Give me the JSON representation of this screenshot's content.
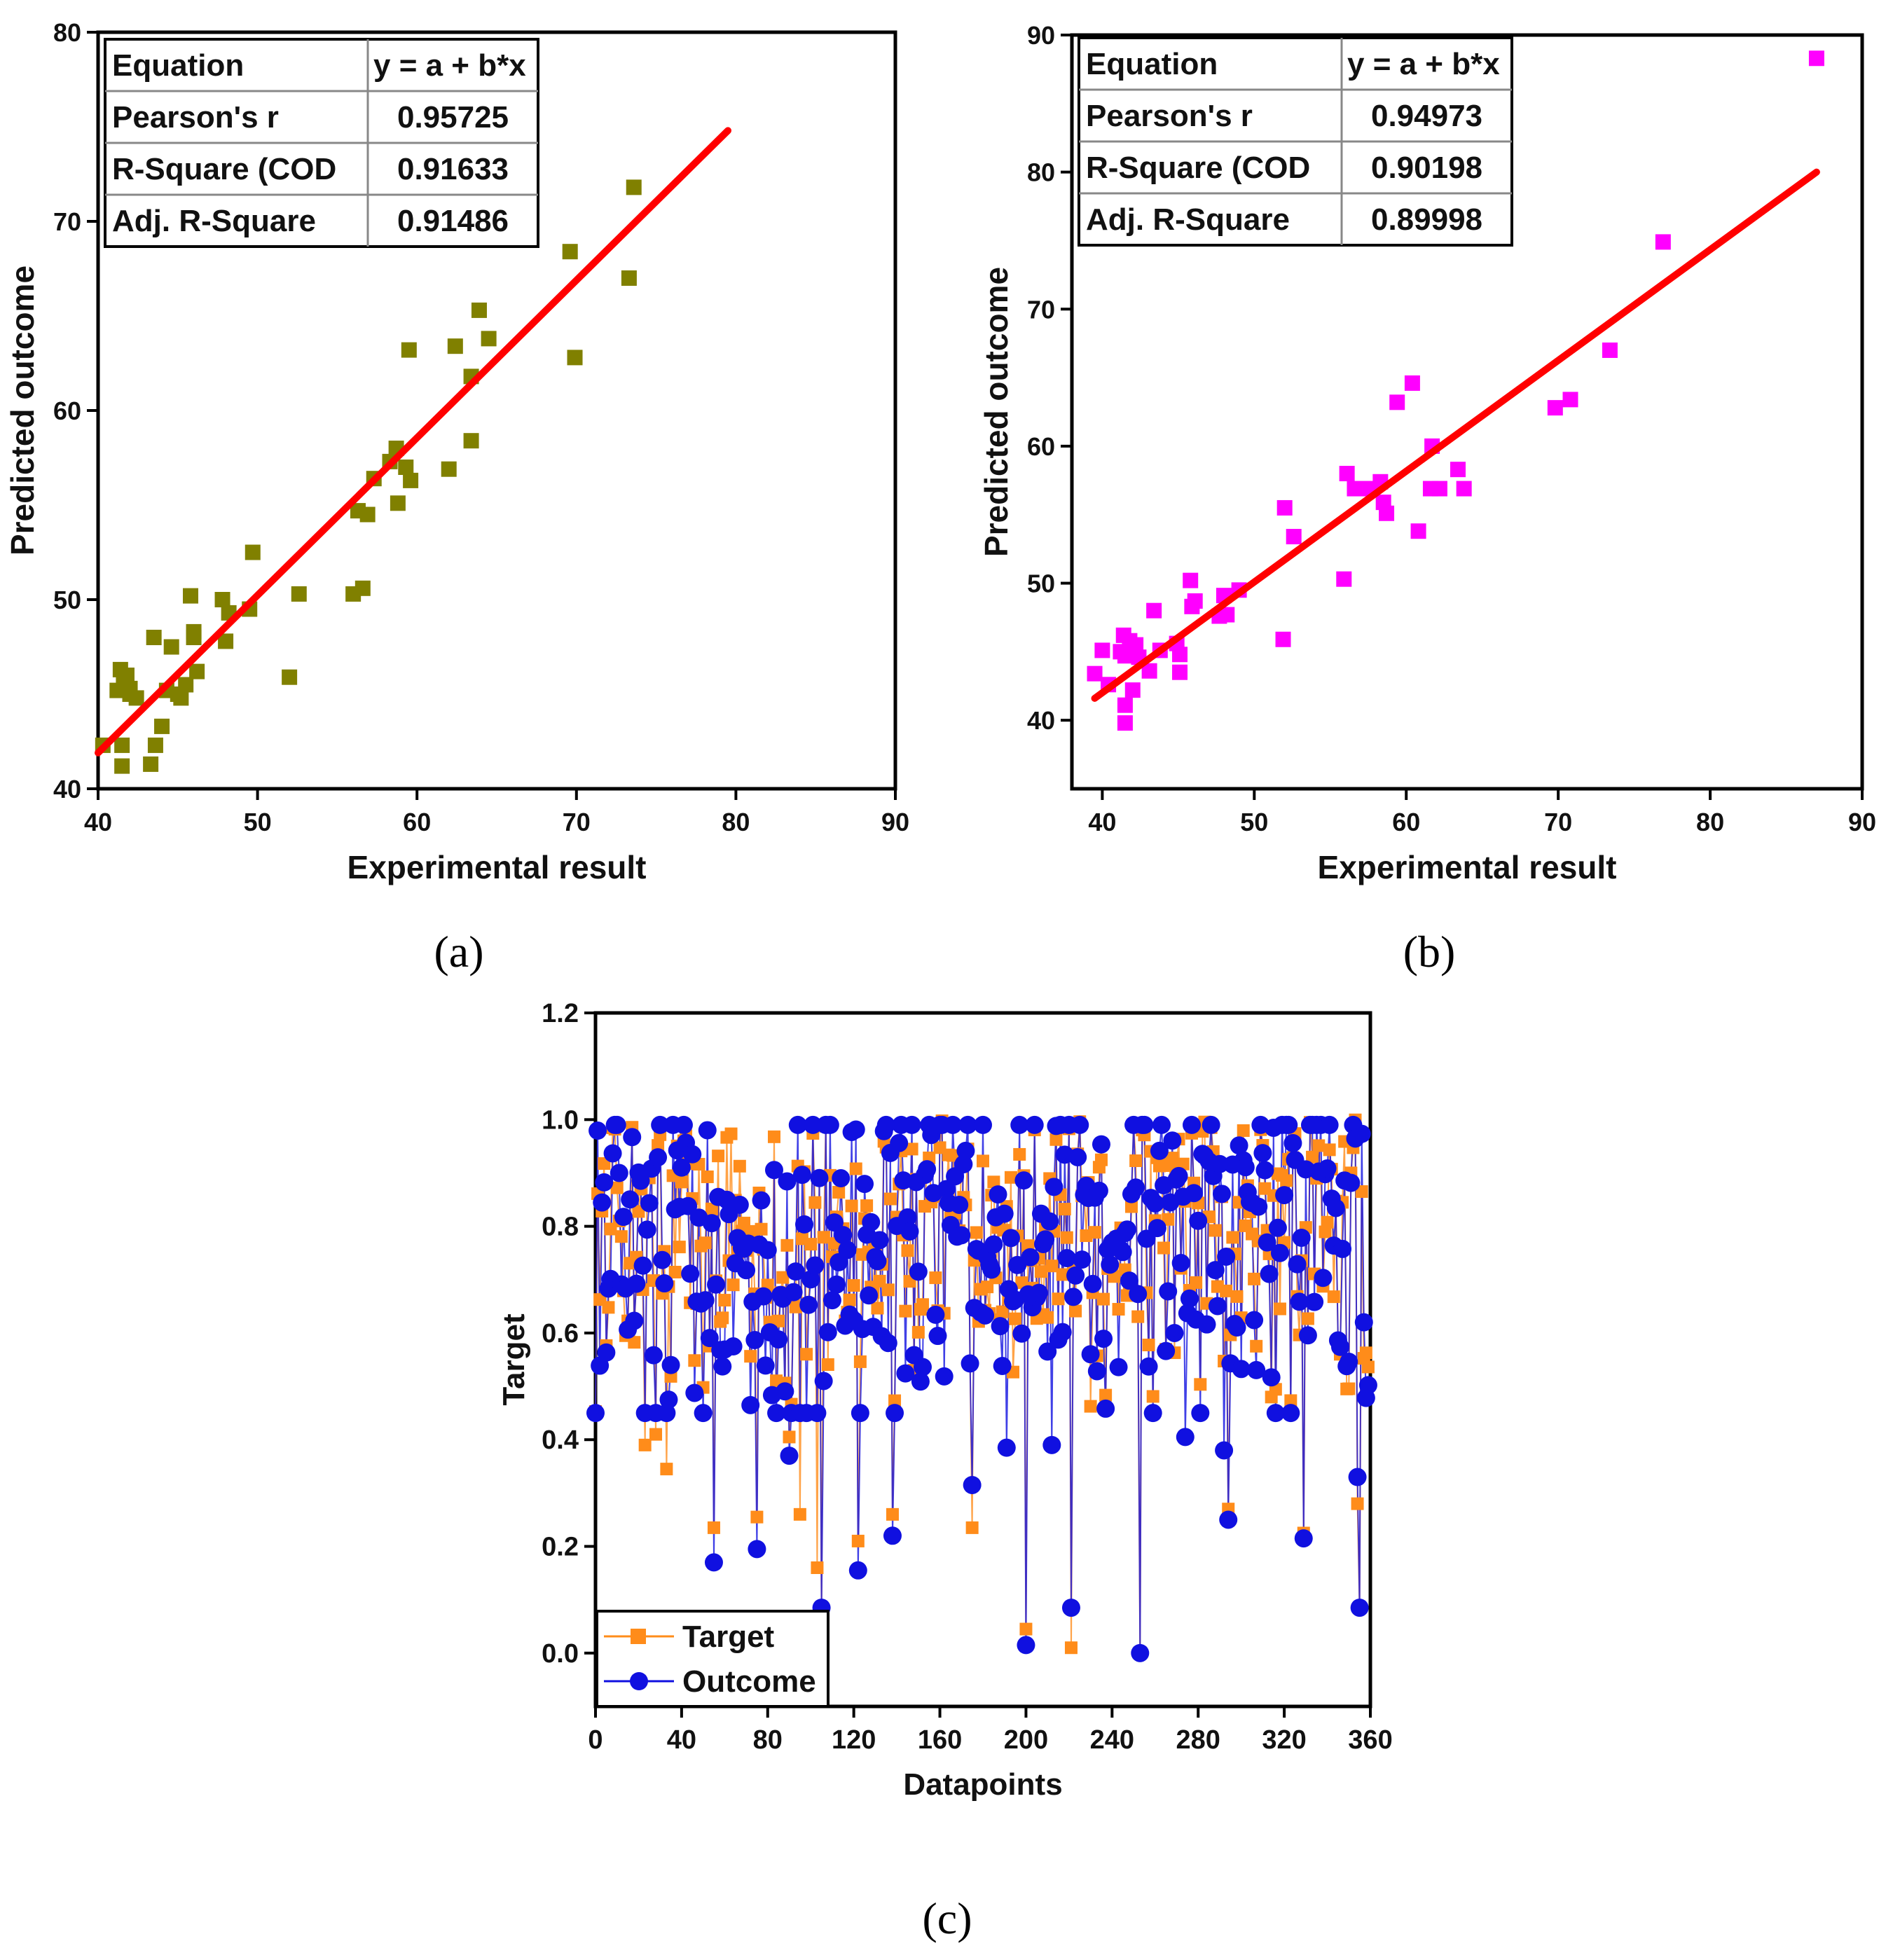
{
  "chart_data": [
    {
      "id": "a",
      "type": "scatter",
      "panel_label": "(a)",
      "xlabel": "Experimental result",
      "ylabel": "Predicted outcome",
      "xlim": [
        40,
        90
      ],
      "ylim": [
        40,
        80
      ],
      "xticks": [
        40,
        50,
        60,
        70,
        80,
        90
      ],
      "yticks": [
        40,
        50,
        60,
        70,
        80
      ],
      "marker_color": "#808000",
      "fit_color": "#ff0000",
      "fit_line": {
        "x": [
          40,
          79.5
        ],
        "y": [
          41.9,
          74.8
        ]
      },
      "stats_table": [
        {
          "label": "Equation",
          "value": "y = a + b*x"
        },
        {
          "label": "Pearson's r",
          "value": "0.95725"
        },
        {
          "label": "R-Square (COD",
          "value": "0.91633"
        },
        {
          "label": "Adj. R-Square",
          "value": "0.91486"
        }
      ],
      "points": [
        [
          40.3,
          42.3
        ],
        [
          41.2,
          45.2
        ],
        [
          41.4,
          46.3
        ],
        [
          41.6,
          45.6
        ],
        [
          41.8,
          46.0
        ],
        [
          41.5,
          42.3
        ],
        [
          41.5,
          41.2
        ],
        [
          42.0,
          45.0
        ],
        [
          42.4,
          44.8
        ],
        [
          42.0,
          45.3
        ],
        [
          43.3,
          41.3
        ],
        [
          43.6,
          42.3
        ],
        [
          43.5,
          48.0
        ],
        [
          44.0,
          43.3
        ],
        [
          44.3,
          45.2
        ],
        [
          44.6,
          47.5
        ],
        [
          45.0,
          45.0
        ],
        [
          45.2,
          44.8
        ],
        [
          45.5,
          45.5
        ],
        [
          45.8,
          50.2
        ],
        [
          46.0,
          48.3
        ],
        [
          46.2,
          46.2
        ],
        [
          46.0,
          48.0
        ],
        [
          47.8,
          50.0
        ],
        [
          48.0,
          47.8
        ],
        [
          48.2,
          49.3
        ],
        [
          49.5,
          49.5
        ],
        [
          49.7,
          52.5
        ],
        [
          52.0,
          45.9
        ],
        [
          52.6,
          50.3
        ],
        [
          56.0,
          50.3
        ],
        [
          56.3,
          54.7
        ],
        [
          56.6,
          50.6
        ],
        [
          56.9,
          54.5
        ],
        [
          57.3,
          56.4
        ],
        [
          58.3,
          57.3
        ],
        [
          58.7,
          58.0
        ],
        [
          58.8,
          55.1
        ],
        [
          59.3,
          57.0
        ],
        [
          59.6,
          56.3
        ],
        [
          59.5,
          63.2
        ],
        [
          62.0,
          56.9
        ],
        [
          62.4,
          63.4
        ],
        [
          63.4,
          58.4
        ],
        [
          63.4,
          61.8
        ],
        [
          63.9,
          65.3
        ],
        [
          64.5,
          63.8
        ],
        [
          69.6,
          68.4
        ],
        [
          69.9,
          62.8
        ],
        [
          73.3,
          67.0
        ],
        [
          73.6,
          71.8
        ]
      ]
    },
    {
      "id": "b",
      "type": "scatter",
      "panel_label": "(b)",
      "xlabel": "Experimental result",
      "ylabel": "Predicted outcome",
      "xlim": [
        38,
        90
      ],
      "ylim": [
        35,
        90
      ],
      "xticks": [
        40,
        50,
        60,
        70,
        80,
        90
      ],
      "yticks": [
        40,
        50,
        60,
        70,
        80,
        90
      ],
      "marker_color": "#ff00ff",
      "fit_color": "#ff0000",
      "fit_line": {
        "x": [
          39.5,
          87.0
        ],
        "y": [
          41.6,
          80.0
        ]
      },
      "stats_table": [
        {
          "label": "Equation",
          "value": "y = a + b*x"
        },
        {
          "label": "Pearson's r",
          "value": "0.94973"
        },
        {
          "label": "R-Square (COD",
          "value": "0.90198"
        },
        {
          "label": "Adj. R-Square",
          "value": "0.89998"
        }
      ],
      "points": [
        [
          39.5,
          43.4
        ],
        [
          40.0,
          45.1
        ],
        [
          40.4,
          42.6
        ],
        [
          41.2,
          45.0
        ],
        [
          41.4,
          46.2
        ],
        [
          41.5,
          44.7
        ],
        [
          41.5,
          41.1
        ],
        [
          41.5,
          39.8
        ],
        [
          41.8,
          45.8
        ],
        [
          42.0,
          42.2
        ],
        [
          42.2,
          45.5
        ],
        [
          42.4,
          44.6
        ],
        [
          43.1,
          43.6
        ],
        [
          43.4,
          48.0
        ],
        [
          43.8,
          45.1
        ],
        [
          44.9,
          45.6
        ],
        [
          45.1,
          43.5
        ],
        [
          45.1,
          44.8
        ],
        [
          45.8,
          50.2
        ],
        [
          45.9,
          48.3
        ],
        [
          46.1,
          48.7
        ],
        [
          47.7,
          47.6
        ],
        [
          48.0,
          49.1
        ],
        [
          48.2,
          47.7
        ],
        [
          49.0,
          49.5
        ],
        [
          51.9,
          45.9
        ],
        [
          52.0,
          55.5
        ],
        [
          52.6,
          53.4
        ],
        [
          55.9,
          50.3
        ],
        [
          56.1,
          58.0
        ],
        [
          56.6,
          56.9
        ],
        [
          57.6,
          56.9
        ],
        [
          58.3,
          57.4
        ],
        [
          58.5,
          55.9
        ],
        [
          58.7,
          55.1
        ],
        [
          59.4,
          63.2
        ],
        [
          60.4,
          64.6
        ],
        [
          60.8,
          53.8
        ],
        [
          61.6,
          56.9
        ],
        [
          61.7,
          60.0
        ],
        [
          62.2,
          56.9
        ],
        [
          63.4,
          58.3
        ],
        [
          63.8,
          56.9
        ],
        [
          69.8,
          62.8
        ],
        [
          70.8,
          63.4
        ],
        [
          73.4,
          67.0
        ],
        [
          76.9,
          74.9
        ],
        [
          87.0,
          88.3
        ]
      ]
    },
    {
      "id": "c",
      "type": "line",
      "panel_label": "(c)",
      "xlabel": "Datapoints",
      "ylabel": "Target",
      "xlim": [
        0,
        360
      ],
      "ylim": [
        -0.1,
        1.2
      ],
      "xticks": [
        0,
        40,
        80,
        120,
        160,
        200,
        240,
        280,
        320,
        360
      ],
      "yticks": [
        0.0,
        0.2,
        0.4,
        0.6,
        0.8,
        1.0,
        1.2
      ],
      "ytick_labels": [
        "0.0",
        "0.2",
        "0.4",
        "0.6",
        "0.8",
        "1.0",
        "1.2"
      ],
      "n_points": 360,
      "series": [
        {
          "name": "Target",
          "color": "#ff8c1a",
          "marker": "square",
          "anchor_points": [
            [
              55,
              0.235
            ],
            [
              75,
              0.255
            ],
            [
              90,
              0.405
            ],
            [
              95,
              0.26
            ],
            [
              103,
              0.16
            ],
            [
              105,
              0.075
            ],
            [
              122,
              0.21
            ],
            [
              138,
              0.26
            ],
            [
              175,
              0.235
            ],
            [
              200,
              0.045
            ],
            [
              221,
              0.01
            ],
            [
              253,
              0.0
            ],
            [
              294,
              0.27
            ],
            [
              329,
              0.225
            ],
            [
              354,
              0.28
            ],
            [
              355,
              0.085
            ],
            [
              33,
              0.345
            ],
            [
              23,
              0.39
            ],
            [
              28,
              0.41
            ]
          ]
        },
        {
          "name": "Outcome",
          "color": "#1010e0",
          "marker": "circle",
          "anchor_points": [
            [
              55,
              0.17
            ],
            [
              75,
              0.195
            ],
            [
              90,
              0.37
            ],
            [
              105,
              0.085
            ],
            [
              106,
              0.51
            ],
            [
              122,
              0.155
            ],
            [
              138,
              0.22
            ],
            [
              175,
              0.315
            ],
            [
              200,
              0.015
            ],
            [
              221,
              0.085
            ],
            [
              253,
              0.0
            ],
            [
              294,
              0.25
            ],
            [
              329,
              0.215
            ],
            [
              354,
              0.33
            ],
            [
              355,
              0.085
            ],
            [
              34,
              0.475
            ],
            [
              191,
              0.385
            ],
            [
              212,
              0.39
            ],
            [
              274,
              0.405
            ],
            [
              292,
              0.38
            ]
          ]
        }
      ],
      "legend": {
        "placement": "bottom-left",
        "entries": [
          "Target",
          "Outcome"
        ]
      }
    }
  ]
}
